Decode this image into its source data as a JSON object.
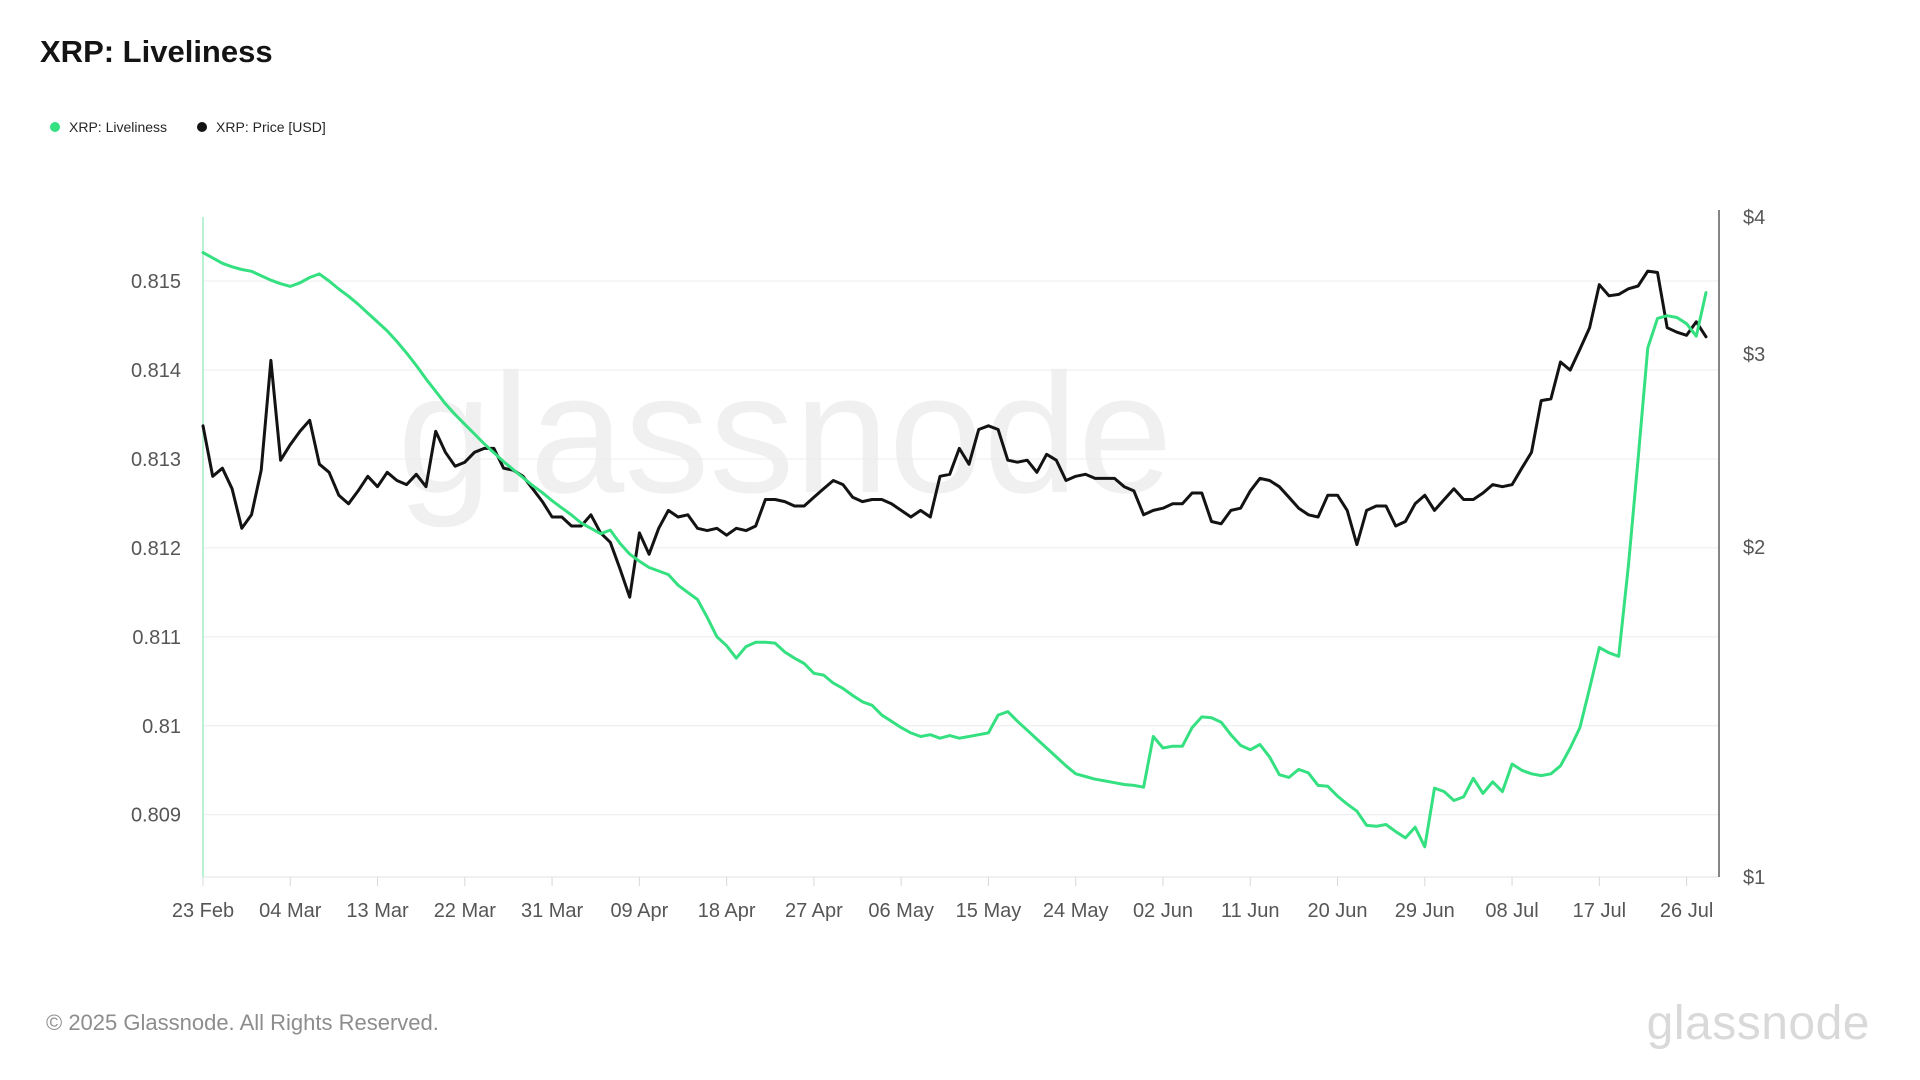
{
  "page": {
    "title": "XRP: Liveliness",
    "watermark": "glassnode",
    "footer_copyright": "© 2025 Glassnode. All Rights Reserved.",
    "footer_logo": "glassnode"
  },
  "legend": {
    "items": [
      {
        "label": "XRP: Liveliness",
        "color": "#35e081"
      },
      {
        "label": "XRP: Price [USD]",
        "color": "#131313"
      }
    ]
  },
  "colors": {
    "liveliness_line": "#35e081",
    "price_line": "#131313",
    "start_marker_line": "#b8f1d3",
    "gridline": "#ececec",
    "axis_line": "#e3e3e3",
    "right_axis_line": "#5f5f5f",
    "tick_mark": "#d8d8d8",
    "axis_text": "#565656",
    "watermark": "#f0f0f0"
  },
  "chart_data": {
    "type": "line",
    "title": "XRP: Liveliness",
    "cadence": "daily",
    "x_start_label": "23 Feb",
    "x_end_label": "26 Jul",
    "x_tick_interval_days": 9,
    "x_tick_labels": [
      "23 Feb",
      "04 Mar",
      "13 Mar",
      "22 Mar",
      "31 Mar",
      "09 Apr",
      "18 Apr",
      "27 Apr",
      "06 May",
      "15 May",
      "24 May",
      "02 Jun",
      "11 Jun",
      "20 Jun",
      "29 Jun",
      "08 Jul",
      "17 Jul",
      "26 Jul"
    ],
    "left_axis": {
      "scale": "linear",
      "ticks": [
        0.815,
        0.814,
        0.813,
        0.812,
        0.811,
        0.81,
        0.809
      ],
      "labels": [
        "0.815",
        "0.814",
        "0.813",
        "0.812",
        "0.811",
        "0.81",
        "0.809"
      ],
      "domain": [
        0.8083,
        0.81572
      ]
    },
    "right_axis": {
      "scale": "log",
      "ticks": [
        4,
        3,
        2,
        1
      ],
      "labels": [
        "$4",
        "$3",
        "$2",
        "$1"
      ],
      "domain": [
        1,
        4
      ]
    },
    "grid": true,
    "legend_position": "top-left",
    "series": [
      {
        "name": "XRP: Liveliness",
        "axis": "left",
        "color": "#35e081",
        "values": [
          0.81532,
          0.81526,
          0.8152,
          0.81516,
          0.81513,
          0.81511,
          0.81506,
          0.81501,
          0.81497,
          0.81494,
          0.81498,
          0.81504,
          0.81508,
          0.815,
          0.81491,
          0.81483,
          0.81474,
          0.81464,
          0.81454,
          0.81444,
          0.81432,
          0.81419,
          0.81405,
          0.8139,
          0.81376,
          0.81362,
          0.8135,
          0.81339,
          0.81328,
          0.81317,
          0.81307,
          0.81297,
          0.81288,
          0.81279,
          0.8127,
          0.81262,
          0.81253,
          0.81245,
          0.81237,
          0.81228,
          0.81222,
          0.81216,
          0.8122,
          0.81205,
          0.81193,
          0.81185,
          0.81178,
          0.81174,
          0.8117,
          0.81158,
          0.8115,
          0.81142,
          0.81122,
          0.811,
          0.8109,
          0.81076,
          0.81089,
          0.81094,
          0.81094,
          0.81093,
          0.81083,
          0.81076,
          0.8107,
          0.81059,
          0.81057,
          0.81048,
          0.81042,
          0.81034,
          0.81027,
          0.81023,
          0.81012,
          0.81005,
          0.80998,
          0.80992,
          0.80988,
          0.8099,
          0.80986,
          0.80989,
          0.80986,
          0.80988,
          0.8099,
          0.80992,
          0.81012,
          0.81016,
          0.81005,
          0.80995,
          0.80985,
          0.80975,
          0.80965,
          0.80955,
          0.80946,
          0.80943,
          0.8094,
          0.80938,
          0.80936,
          0.80934,
          0.80933,
          0.80931,
          0.80988,
          0.80975,
          0.80977,
          0.80977,
          0.80998,
          0.8101,
          0.81009,
          0.81004,
          0.8099,
          0.80978,
          0.80973,
          0.80979,
          0.80965,
          0.80945,
          0.80942,
          0.80951,
          0.80947,
          0.80933,
          0.80932,
          0.80921,
          0.80912,
          0.80904,
          0.80888,
          0.80887,
          0.80889,
          0.80881,
          0.80874,
          0.80886,
          0.80864,
          0.8093,
          0.80926,
          0.80916,
          0.8092,
          0.80941,
          0.80924,
          0.80937,
          0.80926,
          0.80957,
          0.8095,
          0.80946,
          0.80944,
          0.80946,
          0.80955,
          0.80975,
          0.80998,
          0.81042,
          0.81088,
          0.81082,
          0.81078,
          0.8118,
          0.813,
          0.81425,
          0.81458,
          0.81461,
          0.81459,
          0.81452,
          0.81438,
          0.81487
        ]
      },
      {
        "name": "XRP: Price [USD]",
        "axis": "right",
        "color": "#131313",
        "values": [
          2.58,
          2.32,
          2.36,
          2.26,
          2.08,
          2.14,
          2.35,
          2.96,
          2.4,
          2.48,
          2.55,
          2.61,
          2.38,
          2.34,
          2.23,
          2.19,
          2.25,
          2.32,
          2.27,
          2.34,
          2.3,
          2.28,
          2.33,
          2.27,
          2.55,
          2.44,
          2.37,
          2.39,
          2.44,
          2.46,
          2.46,
          2.36,
          2.35,
          2.32,
          2.26,
          2.2,
          2.13,
          2.13,
          2.09,
          2.09,
          2.14,
          2.06,
          2.02,
          1.91,
          1.8,
          2.06,
          1.97,
          2.08,
          2.16,
          2.13,
          2.14,
          2.08,
          2.07,
          2.08,
          2.05,
          2.08,
          2.07,
          2.09,
          2.21,
          2.21,
          2.2,
          2.18,
          2.18,
          2.22,
          2.26,
          2.3,
          2.28,
          2.22,
          2.2,
          2.21,
          2.21,
          2.19,
          2.16,
          2.13,
          2.16,
          2.13,
          2.32,
          2.33,
          2.46,
          2.38,
          2.56,
          2.58,
          2.56,
          2.4,
          2.39,
          2.4,
          2.34,
          2.43,
          2.4,
          2.3,
          2.32,
          2.33,
          2.31,
          2.31,
          2.31,
          2.27,
          2.25,
          2.14,
          2.16,
          2.17,
          2.19,
          2.19,
          2.24,
          2.24,
          2.11,
          2.1,
          2.16,
          2.17,
          2.25,
          2.31,
          2.3,
          2.27,
          2.22,
          2.17,
          2.14,
          2.13,
          2.23,
          2.23,
          2.16,
          2.01,
          2.16,
          2.18,
          2.18,
          2.09,
          2.11,
          2.19,
          2.23,
          2.16,
          2.21,
          2.26,
          2.21,
          2.21,
          2.24,
          2.28,
          2.27,
          2.28,
          2.36,
          2.44,
          2.72,
          2.73,
          2.95,
          2.9,
          3.03,
          3.17,
          3.47,
          3.39,
          3.4,
          3.44,
          3.46,
          3.57,
          3.56,
          3.17,
          3.14,
          3.12,
          3.21,
          3.11
        ]
      }
    ]
  }
}
